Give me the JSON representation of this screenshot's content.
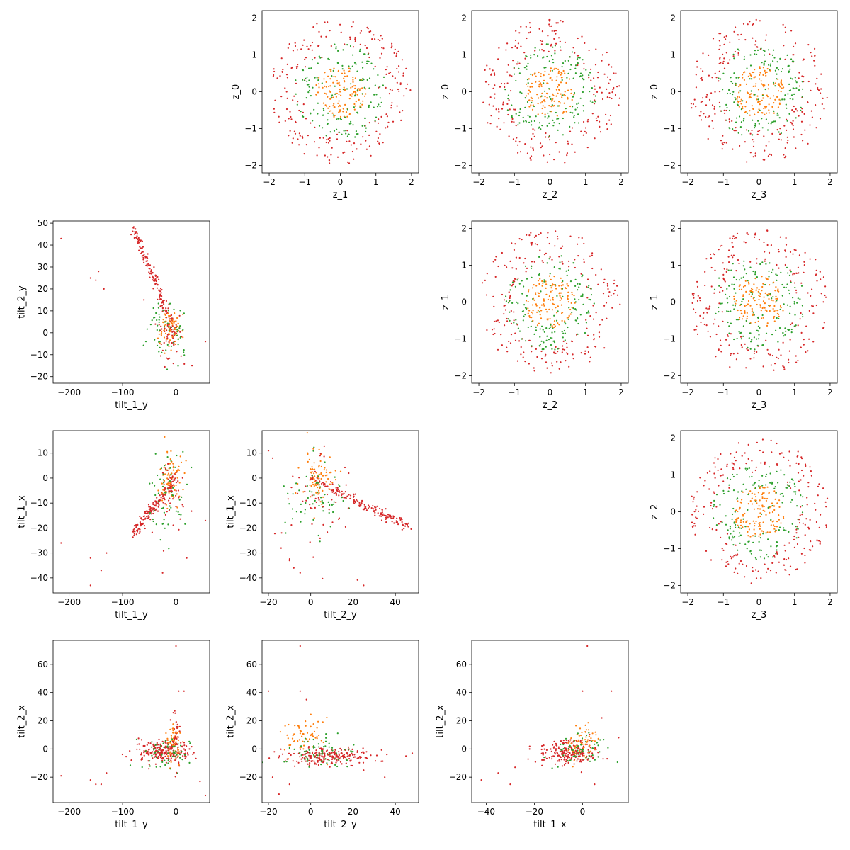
{
  "colors": {
    "orange": "#ff7f0e",
    "green": "#2ca02c",
    "red": "#d62728"
  },
  "chart_data": [
    {
      "type": "scatter",
      "row": 0,
      "col": 1,
      "xlabel": "z_1",
      "ylabel": "z_0",
      "xlim": [
        -2.2,
        2.2
      ],
      "ylim": [
        -2.2,
        2.2
      ],
      "xticks": [
        -2,
        -1,
        0,
        1,
        2
      ],
      "yticks": [
        -2,
        -1,
        0,
        1,
        2
      ],
      "pattern": "rings"
    },
    {
      "type": "scatter",
      "row": 0,
      "col": 2,
      "xlabel": "z_2",
      "ylabel": "z_0",
      "xlim": [
        -2.2,
        2.2
      ],
      "ylim": [
        -2.2,
        2.2
      ],
      "xticks": [
        -2,
        -1,
        0,
        1,
        2
      ],
      "yticks": [
        -2,
        -1,
        0,
        1,
        2
      ],
      "pattern": "rings"
    },
    {
      "type": "scatter",
      "row": 0,
      "col": 3,
      "xlabel": "z_3",
      "ylabel": "z_0",
      "xlim": [
        -2.2,
        2.2
      ],
      "ylim": [
        -2.2,
        2.2
      ],
      "xticks": [
        -2,
        -1,
        0,
        1,
        2
      ],
      "yticks": [
        -2,
        -1,
        0,
        1,
        2
      ],
      "pattern": "rings"
    },
    {
      "type": "scatter",
      "row": 1,
      "col": 0,
      "xlabel": "tilt_1_y",
      "ylabel": "tilt_2_y",
      "xlim": [
        -230,
        63
      ],
      "ylim": [
        -23,
        51
      ],
      "xticks": [
        -200,
        -100,
        0
      ],
      "yticks": [
        -20,
        -10,
        0,
        10,
        20,
        30,
        40,
        50
      ],
      "pattern": "tilt21"
    },
    {
      "type": "scatter",
      "row": 1,
      "col": 2,
      "xlabel": "z_2",
      "ylabel": "z_1",
      "xlim": [
        -2.2,
        2.2
      ],
      "ylim": [
        -2.2,
        2.2
      ],
      "xticks": [
        -2,
        -1,
        0,
        1,
        2
      ],
      "yticks": [
        -2,
        -1,
        0,
        1,
        2
      ],
      "pattern": "rings"
    },
    {
      "type": "scatter",
      "row": 1,
      "col": 3,
      "xlabel": "z_3",
      "ylabel": "z_1",
      "xlim": [
        -2.2,
        2.2
      ],
      "ylim": [
        -2.2,
        2.2
      ],
      "xticks": [
        -2,
        -1,
        0,
        1,
        2
      ],
      "yticks": [
        -2,
        -1,
        0,
        1,
        2
      ],
      "pattern": "rings"
    },
    {
      "type": "scatter",
      "row": 2,
      "col": 0,
      "xlabel": "tilt_1_y",
      "ylabel": "tilt_1_x",
      "xlim": [
        -230,
        63
      ],
      "ylim": [
        -46,
        19
      ],
      "xticks": [
        -200,
        -100,
        0
      ],
      "yticks": [
        -40,
        -30,
        -20,
        -10,
        0,
        10
      ],
      "pattern": "tilt11"
    },
    {
      "type": "scatter",
      "row": 2,
      "col": 1,
      "xlabel": "tilt_2_y",
      "ylabel": "tilt_1_x",
      "xlim": [
        -23,
        51
      ],
      "ylim": [
        -46,
        19
      ],
      "xticks": [
        -20,
        0,
        20,
        40
      ],
      "yticks": [
        -40,
        -30,
        -20,
        -10,
        0,
        10
      ],
      "pattern": "tilt12"
    },
    {
      "type": "scatter",
      "row": 2,
      "col": 3,
      "xlabel": "z_3",
      "ylabel": "z_2",
      "xlim": [
        -2.2,
        2.2
      ],
      "ylim": [
        -2.2,
        2.2
      ],
      "xticks": [
        -2,
        -1,
        0,
        1,
        2
      ],
      "yticks": [
        -2,
        -1,
        0,
        1,
        2
      ],
      "pattern": "rings"
    },
    {
      "type": "scatter",
      "row": 3,
      "col": 0,
      "xlabel": "tilt_1_y",
      "ylabel": "tilt_2_x",
      "xlim": [
        -230,
        63
      ],
      "ylim": [
        -38,
        77
      ],
      "xticks": [
        -200,
        -100,
        0
      ],
      "yticks": [
        -20,
        0,
        20,
        40,
        60
      ],
      "pattern": "tilt2x_a"
    },
    {
      "type": "scatter",
      "row": 3,
      "col": 1,
      "xlabel": "tilt_2_y",
      "ylabel": "tilt_2_x",
      "xlim": [
        -23,
        51
      ],
      "ylim": [
        -38,
        77
      ],
      "xticks": [
        -20,
        0,
        20,
        40
      ],
      "yticks": [
        -20,
        0,
        20,
        40,
        60
      ],
      "pattern": "tilt2x_b"
    },
    {
      "type": "scatter",
      "row": 3,
      "col": 2,
      "xlabel": "tilt_1_x",
      "ylabel": "tilt_2_x",
      "xlim": [
        -46,
        19
      ],
      "ylim": [
        -38,
        77
      ],
      "xticks": [
        -40,
        -20,
        0
      ],
      "yticks": [
        -20,
        0,
        20,
        40,
        60
      ],
      "pattern": "tilt2x_c"
    }
  ]
}
